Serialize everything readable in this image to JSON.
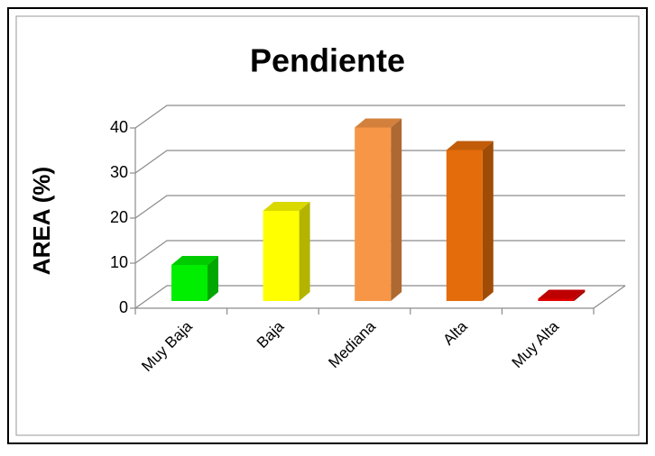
{
  "chart_data": {
    "type": "bar",
    "three_d": true,
    "title": "Pendiente",
    "y_label": "AREA (%)",
    "categories": [
      "Muy Baja",
      "Baja",
      "Mediana",
      "Alta",
      "Muy Alta"
    ],
    "values": [
      8,
      20,
      38.5,
      33.5,
      0.5
    ],
    "colors": [
      "#00ee00",
      "#ffff00",
      "#f79646",
      "#e46c0a",
      "#e00000"
    ],
    "ylim": [
      0,
      40
    ],
    "yticks": [
      0,
      10,
      20,
      30,
      40
    ],
    "grid": true
  }
}
